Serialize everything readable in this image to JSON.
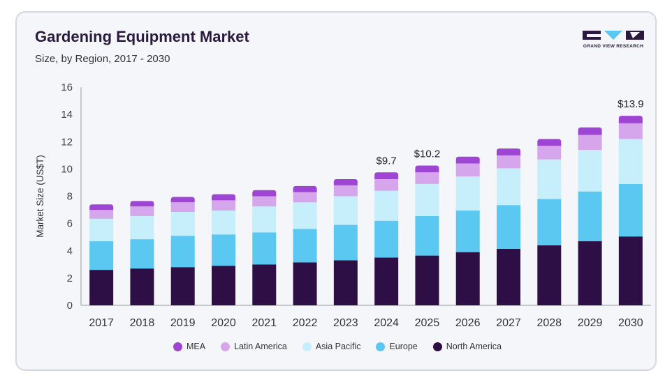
{
  "header": {
    "title": "Gardening Equipment Market",
    "subtitle": "Size, by Region, 2017 - 2030"
  },
  "brand": {
    "name": "GRAND VIEW RESEARCH"
  },
  "chart_data": {
    "type": "bar",
    "stacked": true,
    "title": "Gardening Equipment Market",
    "subtitle": "Size, by Region, 2017 - 2030",
    "xlabel": "",
    "ylabel": "Market Size (US$T)",
    "ylim": [
      0,
      16
    ],
    "yticks": [
      0,
      2,
      4,
      6,
      8,
      10,
      12,
      14,
      16
    ],
    "categories": [
      "2017",
      "2018",
      "2019",
      "2020",
      "2021",
      "2022",
      "2023",
      "2024",
      "2025",
      "2026",
      "2027",
      "2028",
      "2029",
      "2030"
    ],
    "series": [
      {
        "name": "North America",
        "color": "#2e0f45",
        "values": [
          2.6,
          2.7,
          2.8,
          2.9,
          3.0,
          3.15,
          3.3,
          3.5,
          3.65,
          3.9,
          4.15,
          4.4,
          4.7,
          5.05
        ]
      },
      {
        "name": "Europe",
        "color": "#5ac8f0",
        "values": [
          2.1,
          2.15,
          2.3,
          2.3,
          2.35,
          2.45,
          2.6,
          2.7,
          2.9,
          3.05,
          3.2,
          3.4,
          3.65,
          3.85
        ]
      },
      {
        "name": "Asia Pacific",
        "color": "#c6eefb",
        "values": [
          1.65,
          1.7,
          1.75,
          1.75,
          1.9,
          1.95,
          2.1,
          2.2,
          2.35,
          2.5,
          2.7,
          2.9,
          3.05,
          3.3
        ]
      },
      {
        "name": "Latin America",
        "color": "#d5a6ec",
        "values": [
          0.65,
          0.7,
          0.7,
          0.75,
          0.75,
          0.75,
          0.8,
          0.85,
          0.85,
          0.95,
          0.95,
          1.0,
          1.1,
          1.15
        ]
      },
      {
        "name": "MEA",
        "color": "#9f45d4",
        "values": [
          0.4,
          0.4,
          0.4,
          0.45,
          0.45,
          0.45,
          0.45,
          0.5,
          0.5,
          0.5,
          0.5,
          0.5,
          0.55,
          0.55
        ]
      }
    ],
    "annotations": [
      {
        "category": "2024",
        "text": "$9.7"
      },
      {
        "category": "2025",
        "text": "$10.2"
      },
      {
        "category": "2030",
        "text": "$13.9"
      }
    ],
    "legend_order": [
      "MEA",
      "Latin America",
      "Asia Pacific",
      "Europe",
      "North America"
    ],
    "legend_position": "bottom",
    "grid": false
  }
}
